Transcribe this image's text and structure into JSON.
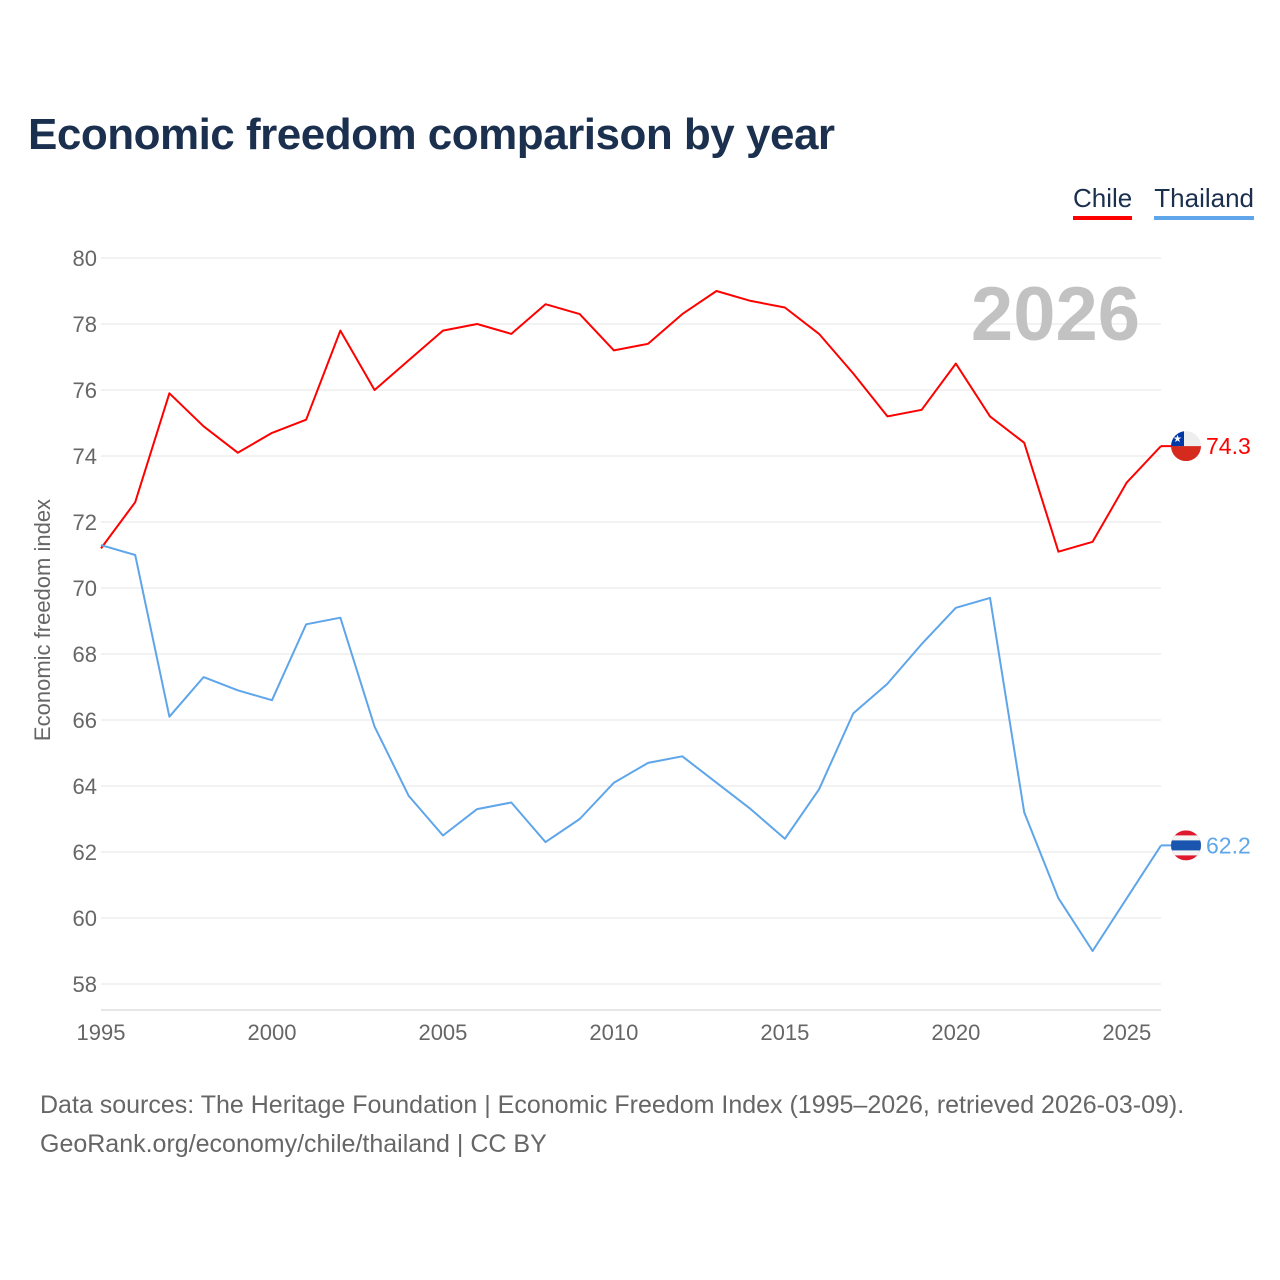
{
  "title": "Economic freedom comparison by year",
  "footer": {
    "line1": "Data sources: The Heritage Foundation | Economic Freedom Index (1995–2026, retrieved 2026-03-09).",
    "line2": "GeoRank.org/economy/chile/thailand | CC BY"
  },
  "chart_data": {
    "type": "line",
    "title": "Economic freedom comparison by year",
    "xlabel": "",
    "ylabel": "Economic freedom index",
    "year_label": "2026",
    "xlim": [
      1995,
      2026
    ],
    "ylim": [
      58,
      80
    ],
    "yticks": [
      "58",
      "60",
      "62",
      "64",
      "66",
      "68",
      "70",
      "72",
      "74",
      "76",
      "78",
      "80"
    ],
    "xticks": [
      "1995",
      "2000",
      "2005",
      "2010",
      "2015",
      "2020",
      "2025"
    ],
    "grid": true,
    "legend_position": "top-right",
    "x": [
      1995,
      1996,
      1997,
      1998,
      1999,
      2000,
      2001,
      2002,
      2003,
      2004,
      2005,
      2006,
      2007,
      2008,
      2009,
      2010,
      2011,
      2012,
      2013,
      2014,
      2015,
      2016,
      2017,
      2018,
      2019,
      2020,
      2021,
      2022,
      2023,
      2024,
      2025,
      2026
    ],
    "series": [
      {
        "name": "Chile",
        "color": "#ff0000",
        "end_label": "74.3",
        "values": [
          71.2,
          72.6,
          75.9,
          74.9,
          74.1,
          74.7,
          75.1,
          77.8,
          76.0,
          76.9,
          77.8,
          78.0,
          77.7,
          78.6,
          78.3,
          77.2,
          77.4,
          78.3,
          79.0,
          78.7,
          78.5,
          77.7,
          76.5,
          75.2,
          75.4,
          76.8,
          75.2,
          74.4,
          71.1,
          71.4,
          73.2,
          74.3
        ]
      },
      {
        "name": "Thailand",
        "color": "#5ea5ea",
        "end_label": "62.2",
        "values": [
          71.3,
          71.0,
          66.1,
          67.3,
          66.9,
          66.6,
          68.9,
          69.1,
          65.8,
          63.7,
          62.5,
          63.3,
          63.5,
          62.3,
          63.0,
          64.1,
          64.7,
          64.9,
          64.1,
          63.3,
          62.4,
          63.9,
          66.2,
          67.1,
          68.3,
          69.4,
          69.7,
          63.2,
          60.6,
          59.0,
          60.6,
          62.2
        ]
      }
    ]
  }
}
